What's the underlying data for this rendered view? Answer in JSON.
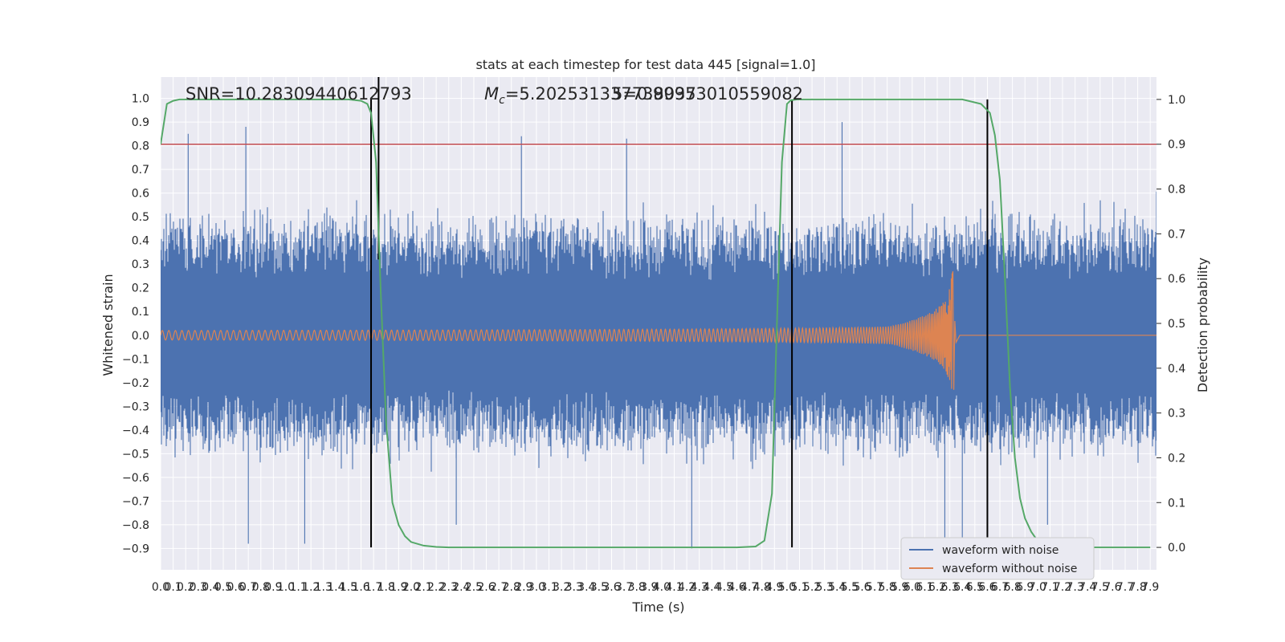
{
  "chart_data": {
    "type": "line",
    "title": "stats at each timestep for test data 445 [signal=1.0]",
    "xlabel": "Time (s)",
    "ylabel": "Whitened strain",
    "y2label": "Detection probability",
    "xlim": [
      0.0,
      7.95
    ],
    "ylim": [
      -0.99,
      1.09
    ],
    "y2lim": [
      -0.05,
      1.05
    ],
    "x_ticks": [
      0.0,
      0.1,
      0.2,
      0.3,
      0.4,
      0.5,
      0.6,
      0.7,
      0.8,
      0.9,
      1.0,
      1.1,
      1.2,
      1.3,
      1.4,
      1.5,
      1.6,
      1.7,
      1.8,
      1.9,
      2.0,
      2.1,
      2.2,
      2.3,
      2.4,
      2.5,
      2.6,
      2.7,
      2.8,
      2.9,
      3.0,
      3.1,
      3.2,
      3.3,
      3.4,
      3.5,
      3.6,
      3.7,
      3.8,
      3.9,
      4.0,
      4.1,
      4.2,
      4.3,
      4.4,
      4.5,
      4.6,
      4.7,
      4.8,
      4.9,
      5.0,
      5.1,
      5.2,
      5.3,
      5.4,
      5.5,
      5.6,
      5.7,
      5.8,
      5.9,
      6.0,
      6.1,
      6.2,
      6.3,
      6.4,
      6.5,
      6.6,
      6.7,
      6.8,
      6.9,
      7.0,
      7.1,
      7.2,
      7.3,
      7.4,
      7.5,
      7.6,
      7.7,
      7.8,
      7.9
    ],
    "y_ticks": [
      -0.9,
      -0.8,
      -0.7,
      -0.6,
      -0.5,
      -0.4,
      -0.3,
      -0.2,
      -0.1,
      0.0,
      0.1,
      0.2,
      0.3,
      0.4,
      0.5,
      0.6,
      0.7,
      0.8,
      0.9,
      1.0
    ],
    "y2_ticks": [
      0.0,
      0.1,
      0.2,
      0.3,
      0.4,
      0.5,
      0.6,
      0.7,
      0.8,
      0.9,
      1.0
    ],
    "grid": true,
    "legend_position": "lower-right",
    "annotations": {
      "snr": "SNR=10.28309440612793",
      "mc_symbol": "M",
      "mc_sub": "c",
      "mc_value": "=5.202531337738037",
      "overlap": "5=0.99953010559082"
    },
    "series": [
      {
        "name": "waveform with noise",
        "color": "#4c72b0",
        "axis": "left",
        "x_range": [
          0.0,
          7.95
        ],
        "envelope_high": 0.42,
        "envelope_low": -0.42,
        "spikes": [
          [
            0.22,
            0.85
          ],
          [
            0.68,
            0.88
          ],
          [
            0.7,
            -0.88
          ],
          [
            1.15,
            -0.88
          ],
          [
            2.36,
            -0.8
          ],
          [
            2.88,
            0.84
          ],
          [
            3.72,
            0.83
          ],
          [
            4.24,
            -0.9
          ],
          [
            5.44,
            0.9
          ],
          [
            6.26,
            -0.87
          ],
          [
            6.4,
            -0.86
          ],
          [
            7.08,
            -0.8
          ]
        ]
      },
      {
        "name": "waveform without noise",
        "color": "#dd8452",
        "axis": "left",
        "x_range": [
          0.0,
          6.35
        ],
        "amplitude_start": 0.02,
        "amplitude_peak": 0.27,
        "peak_time": 6.32,
        "merger_trough": -0.23,
        "ringdown_end": 6.38
      },
      {
        "color": "#55a868",
        "axis": "right",
        "x": [
          0.0,
          0.05,
          0.1,
          0.15,
          0.2,
          1.5,
          1.6,
          1.65,
          1.68,
          1.72,
          1.76,
          1.8,
          1.85,
          1.9,
          1.95,
          2.0,
          2.1,
          2.2,
          2.3,
          2.5,
          3.0,
          4.0,
          4.6,
          4.75,
          4.82,
          4.88,
          4.92,
          4.96,
          5.0,
          5.03,
          5.08,
          5.2,
          6.4,
          6.55,
          6.62,
          6.66,
          6.7,
          6.74,
          6.78,
          6.82,
          6.86,
          6.9,
          6.95,
          7.0,
          7.05,
          7.1,
          7.2,
          7.3,
          7.9
        ],
        "y": [
          0.9,
          0.99,
          0.997,
          1.0,
          1.0,
          1.0,
          0.997,
          0.99,
          0.97,
          0.86,
          0.55,
          0.28,
          0.1,
          0.05,
          0.025,
          0.012,
          0.004,
          0.001,
          0.0,
          0.0,
          0.0,
          0.0,
          0.0,
          0.002,
          0.015,
          0.12,
          0.5,
          0.86,
          0.99,
          0.998,
          1.0,
          1.0,
          1.0,
          0.99,
          0.97,
          0.92,
          0.82,
          0.6,
          0.36,
          0.2,
          0.11,
          0.065,
          0.035,
          0.015,
          0.008,
          0.003,
          0.001,
          0.0,
          0.0
        ]
      },
      {
        "color": "#c44e52",
        "axis": "right",
        "type": "hline",
        "value": 0.9
      }
    ],
    "vlines": [
      {
        "x": 1.68,
        "color": "#000000"
      },
      {
        "x": 1.74,
        "y_from": 0.32,
        "y_to": 1.09,
        "color": "#000000"
      },
      {
        "x": 5.04,
        "color": "#000000"
      },
      {
        "x": 6.6,
        "color": "#000000"
      }
    ]
  }
}
